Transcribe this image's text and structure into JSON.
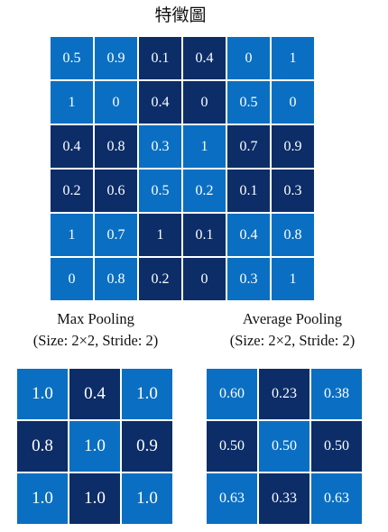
{
  "colors": {
    "light": "#0a6fc2",
    "dark": "#0c2d68"
  },
  "feature_map": {
    "title": "特徵圖",
    "values": [
      [
        "0.5",
        "0.9",
        "0.1",
        "0.4",
        "0",
        "1"
      ],
      [
        "1",
        "0",
        "0.4",
        "0",
        "0.5",
        "0"
      ],
      [
        "0.4",
        "0.8",
        "0.3",
        "1",
        "0.7",
        "0.9"
      ],
      [
        "0.2",
        "0.6",
        "0.5",
        "0.2",
        "0.1",
        "0.3"
      ],
      [
        "1",
        "0.7",
        "1",
        "0.1",
        "0.4",
        "0.8"
      ],
      [
        "0",
        "0.8",
        "0.2",
        "0",
        "0.3",
        "1"
      ]
    ],
    "shades": [
      [
        "light",
        "light",
        "dark",
        "dark",
        "light",
        "light"
      ],
      [
        "light",
        "light",
        "dark",
        "dark",
        "light",
        "light"
      ],
      [
        "dark",
        "dark",
        "light",
        "light",
        "dark",
        "dark"
      ],
      [
        "dark",
        "dark",
        "light",
        "light",
        "dark",
        "dark"
      ],
      [
        "light",
        "light",
        "dark",
        "dark",
        "light",
        "light"
      ],
      [
        "light",
        "light",
        "dark",
        "dark",
        "light",
        "light"
      ]
    ]
  },
  "max_pooling": {
    "caption_line1": "Max Pooling",
    "caption_line2": "(Size: 2×2, Stride: 2)",
    "values": [
      [
        "1.0",
        "0.4",
        "1.0"
      ],
      [
        "0.8",
        "1.0",
        "0.9"
      ],
      [
        "1.0",
        "1.0",
        "1.0"
      ]
    ],
    "shades": [
      [
        "light",
        "dark",
        "light"
      ],
      [
        "dark",
        "light",
        "dark"
      ],
      [
        "light",
        "dark",
        "light"
      ]
    ]
  },
  "average_pooling": {
    "caption_line1": "Average Pooling",
    "caption_line2": "(Size: 2×2, Stride: 2)",
    "values": [
      [
        "0.60",
        "0.23",
        "0.38"
      ],
      [
        "0.50",
        "0.50",
        "0.50"
      ],
      [
        "0.63",
        "0.33",
        "0.63"
      ]
    ],
    "shades": [
      [
        "light",
        "dark",
        "light"
      ],
      [
        "dark",
        "light",
        "dark"
      ],
      [
        "light",
        "dark",
        "light"
      ]
    ]
  }
}
